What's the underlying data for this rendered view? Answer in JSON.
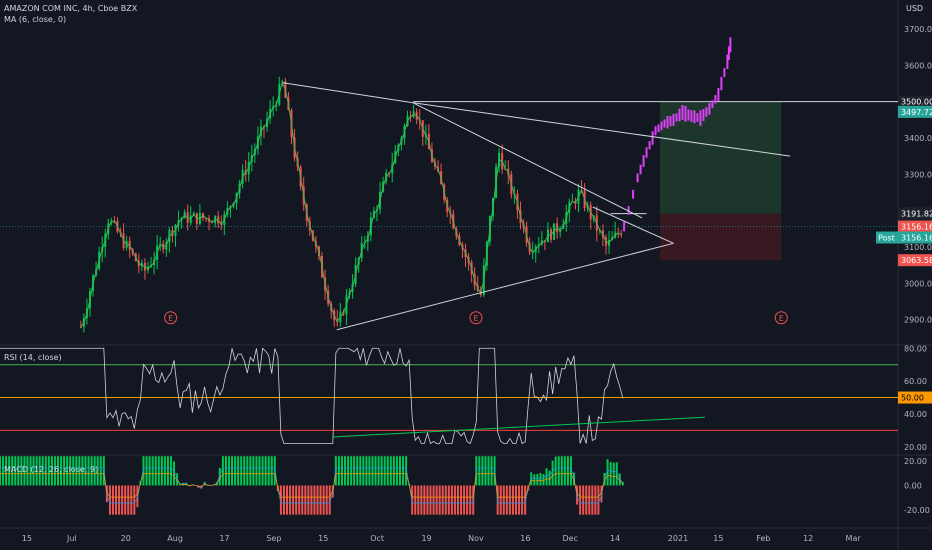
{
  "header": {
    "title": "AMAZON COM INC, 4h, Cboe BZX",
    "ma_label": "MA (6, close, 0)",
    "currency": "USD"
  },
  "panels": {
    "rsi_label": "RSI (14, close)",
    "macd_label": "MACD (12, 26, close, 9)"
  },
  "colors": {
    "background": "#131722",
    "up": "#26a69a",
    "up_bright": "#00c853",
    "down": "#ef5350",
    "projection": "#e040fb",
    "trendline": "#d1d4dc",
    "ma": "#4caf50",
    "target_zone": "#1e3a2c",
    "stop_zone": "#3d1a22",
    "rsi_line": "#d1d4dc",
    "rsi_upper": "#4caf50",
    "rsi_mid": "#ff9800",
    "rsi_lower": "#f44336",
    "macd_line": "#2196f3",
    "signal_line": "#ff9800"
  },
  "chart_data": {
    "type": "candlestick",
    "price_axis": {
      "ticks": [
        2900,
        3000,
        3100,
        3200,
        3300,
        3400,
        3500,
        3600,
        3700
      ],
      "tick_labels": [
        "2900.00",
        "3000.00",
        "3100.00",
        "3200.00",
        "3300.00",
        "3400.00",
        "3500.00",
        "3600.00",
        "3700.00"
      ],
      "ylim": [
        2830,
        3780
      ]
    },
    "time_axis": {
      "labels": [
        "15",
        "Jul",
        "20",
        "Aug",
        "17",
        "Sep",
        "15",
        "Oct",
        "19",
        "Nov",
        "16",
        "Dec",
        "14",
        "2021",
        "15",
        "Feb",
        "12",
        "Mar"
      ],
      "xlim": [
        0,
        100
      ]
    },
    "price_tags": [
      {
        "label": "3500.00",
        "value": 3500,
        "color": "#1e222d"
      },
      {
        "label": "3497.72",
        "value": 3472,
        "color": "#26a69a"
      },
      {
        "label": "3191.82",
        "value": 3191.82,
        "color": "#1e222d"
      },
      {
        "label": "3156.16",
        "value": 3156.16,
        "color": "#ef5350"
      },
      {
        "label": "3156.16",
        "value": 3126,
        "color": "#26a69a",
        "prefix": "Post"
      },
      {
        "label": "3063.58",
        "value": 3063.58,
        "color": "#ef5350"
      }
    ],
    "earnings_markers": [
      "E",
      "E",
      "E"
    ],
    "key_points": {
      "jun_start": {
        "t": 9,
        "price": 2880
      },
      "sep_high": {
        "t": 31.5,
        "price": 3552
      },
      "sep_low": {
        "t": 37.5,
        "price": 2872
      },
      "oct_high": {
        "t": 46,
        "price": 3497
      },
      "nov_low": {
        "t": 53.5,
        "price": 2960
      },
      "nov_high": {
        "t": 55.5,
        "price": 3365
      },
      "dec_high": {
        "t": 64.5,
        "price": 3250
      },
      "current": {
        "t": 69.5,
        "price": 3156
      },
      "apex": {
        "t": 75,
        "price": 3110
      }
    },
    "projection_path": [
      [
        69.5,
        3156
      ],
      [
        71,
        3290
      ],
      [
        72,
        3360
      ],
      [
        73,
        3420
      ],
      [
        74,
        3440
      ],
      [
        75,
        3450
      ],
      [
        76,
        3470
      ],
      [
        77,
        3460
      ],
      [
        78,
        3455
      ],
      [
        79,
        3480
      ],
      [
        80,
        3520
      ],
      [
        81,
        3610
      ],
      [
        81.5,
        3680
      ]
    ],
    "zones": {
      "target": {
        "t_start": 73.5,
        "t_end": 87,
        "price_top": 3500,
        "price_bottom": 3191.82
      },
      "stop": {
        "t_start": 73.5,
        "t_end": 87,
        "price_top": 3191.82,
        "price_bottom": 3063.58
      }
    },
    "horizontal_lines": [
      {
        "price": 3500,
        "t_start": 46,
        "t_end": 100
      },
      {
        "price": 3191.82,
        "t_start": 68,
        "t_end": 72
      }
    ],
    "rsi": {
      "ticks": [
        20,
        40,
        60,
        80
      ],
      "tick_labels": [
        "20.00",
        "40.00",
        "60.00",
        "80.00"
      ],
      "ylim": [
        15,
        82
      ],
      "levels": [
        70,
        50,
        30
      ],
      "current": 50,
      "current_label": "50.00"
    },
    "macd": {
      "ticks": [
        -20,
        0,
        20
      ],
      "tick_labels": [
        "-20.00",
        "0.00",
        "20.00"
      ],
      "ylim": [
        -30,
        25
      ]
    }
  }
}
